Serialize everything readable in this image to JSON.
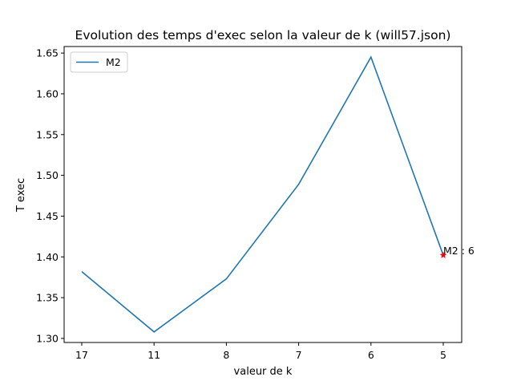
{
  "chart_data": {
    "type": "line",
    "title": "Evolution des temps d'exec selon la valeur de k (will57.json)",
    "xlabel": "valeur de k",
    "ylabel": "T exec",
    "categories": [
      "17",
      "11",
      "8",
      "7",
      "6",
      "5"
    ],
    "series": [
      {
        "name": "M2",
        "color": "#1f77b4",
        "values": [
          1.382,
          1.308,
          1.373,
          1.489,
          1.645,
          1.402
        ]
      }
    ],
    "ylim": [
      1.295,
      1.658
    ],
    "yticks": [
      1.3,
      1.35,
      1.4,
      1.45,
      1.5,
      1.55,
      1.6,
      1.65
    ],
    "ytick_labels": [
      "1.30",
      "1.35",
      "1.40",
      "1.45",
      "1.50",
      "1.55",
      "1.60",
      "1.65"
    ],
    "grid": false,
    "legend_position": "top-left",
    "marker": {
      "category": "5",
      "value": 1.402,
      "color": "#ff0000",
      "symbol": "star"
    },
    "annotation": {
      "text": "M2 : 6",
      "category": "5",
      "value": 1.402
    }
  }
}
